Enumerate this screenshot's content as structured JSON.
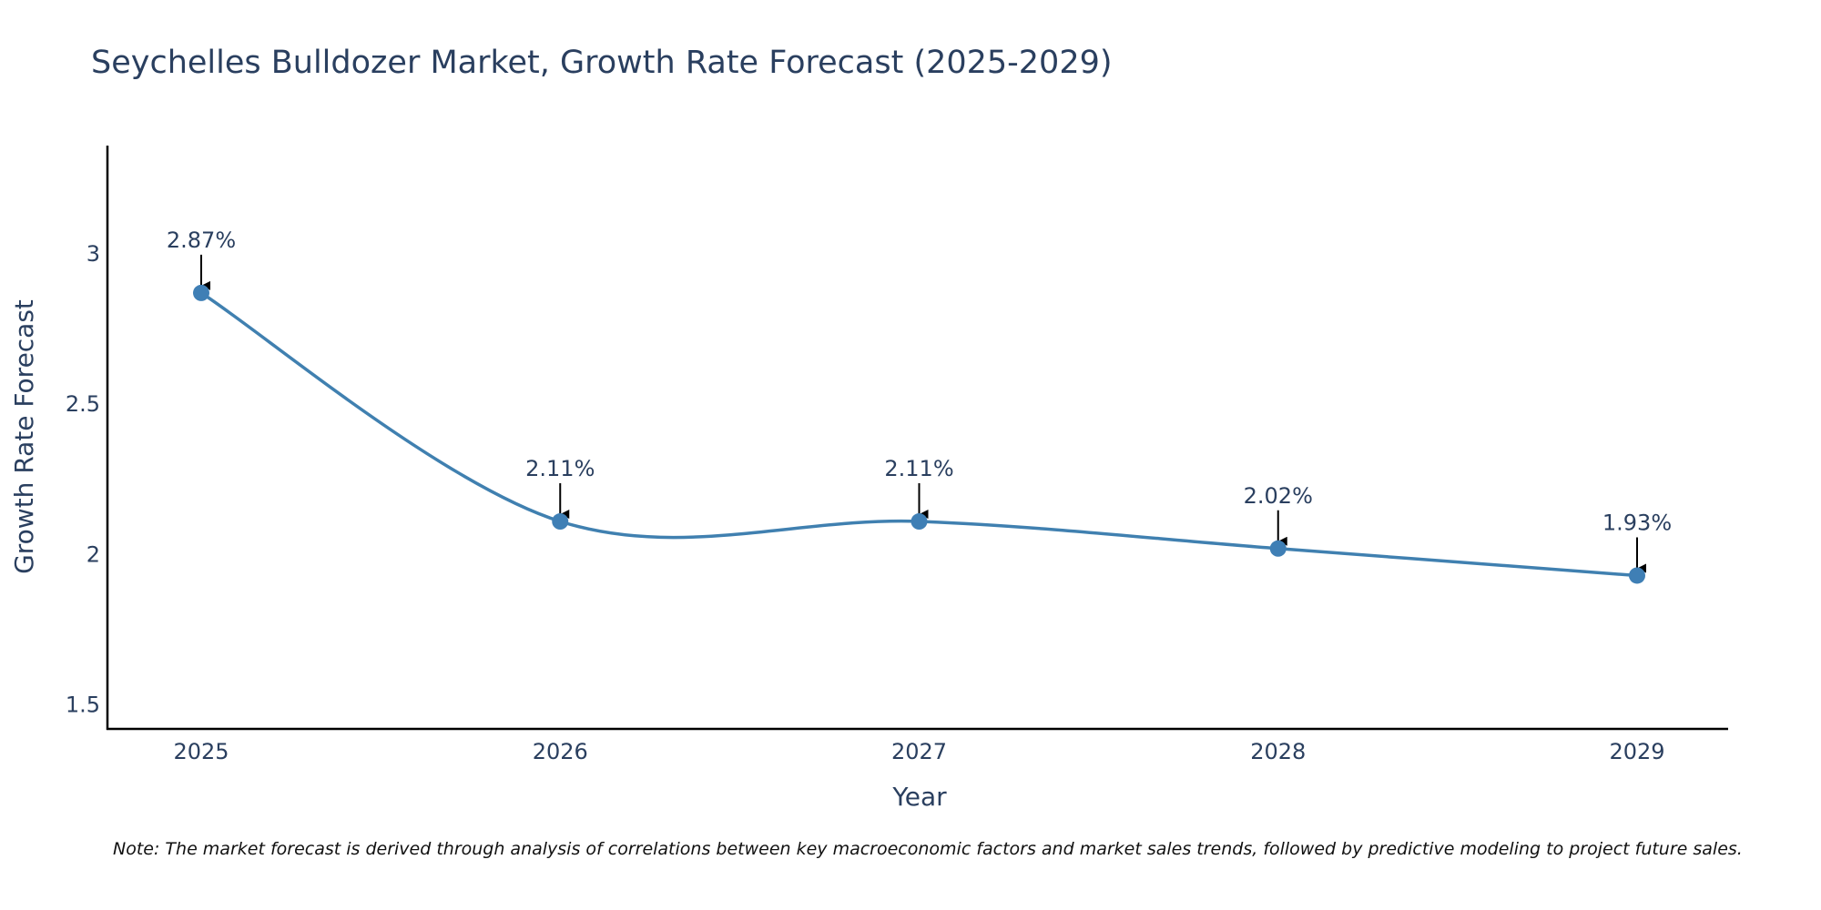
{
  "chart_data": {
    "type": "line",
    "title": "Seychelles Bulldozer Market, Growth Rate Forecast (2025-2029)",
    "xlabel": "Year",
    "ylabel": "Growth Rate Forecast",
    "categories": [
      "2025",
      "2026",
      "2027",
      "2028",
      "2029"
    ],
    "values": [
      2.87,
      2.11,
      2.11,
      2.02,
      1.93
    ],
    "labels": [
      "2.87%",
      "2.11%",
      "2.11%",
      "2.02%",
      "1.93%"
    ],
    "yticks": [
      1.5,
      2,
      2.5,
      3
    ],
    "ytick_labels": [
      "1.5",
      "2",
      "2.5",
      "3"
    ],
    "ylim": [
      1.42,
      3.36
    ],
    "grid": false,
    "line_shape": "spline",
    "colors": {
      "line": "#4080b0",
      "marker": "#3f7fb5",
      "axis": "#000000",
      "text": "#2a3f5f",
      "arrow": "#000000"
    },
    "note": "Note: The market forecast is derived through analysis of correlations between key macroeconomic factors and market sales trends, followed by predictive modeling to project future sales."
  }
}
